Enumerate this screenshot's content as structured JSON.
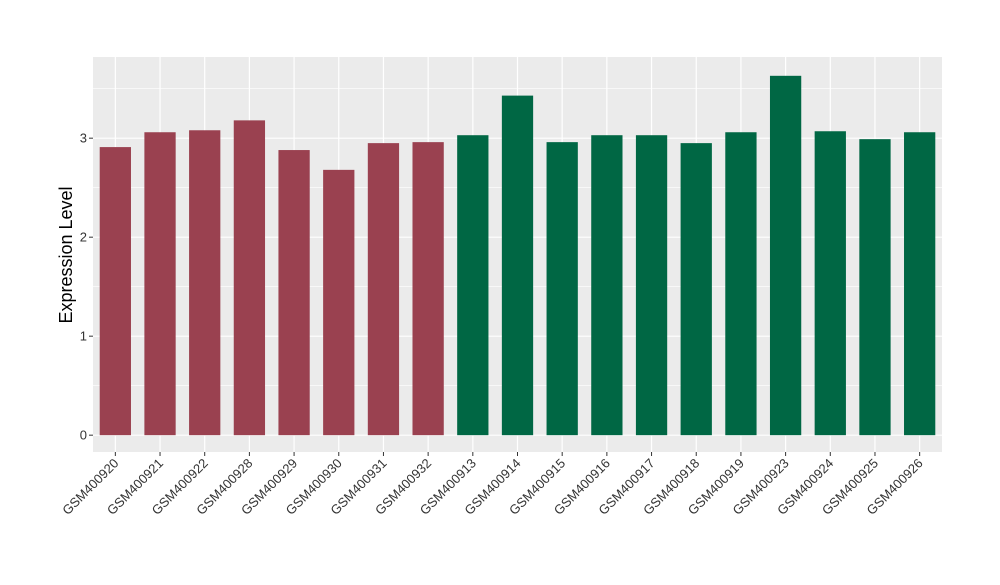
{
  "chart_data": {
    "type": "bar",
    "title": "",
    "xlabel": "",
    "ylabel": "Expression Level",
    "ylim": [
      -0.17,
      3.82
    ],
    "yticks": [
      0,
      1,
      2,
      3
    ],
    "grid": true,
    "legend": "none",
    "colors": {
      "group_a": "#9a4150",
      "group_b": "#006744",
      "panel": "#ebebeb",
      "gridline": "#ffffff"
    },
    "categories": [
      "GSM400920",
      "GSM400921",
      "GSM400922",
      "GSM400928",
      "GSM400929",
      "GSM400930",
      "GSM400931",
      "GSM400932",
      "GSM400913",
      "GSM400914",
      "GSM400915",
      "GSM400916",
      "GSM400917",
      "GSM400918",
      "GSM400919",
      "GSM400923",
      "GSM400924",
      "GSM400925",
      "GSM400926"
    ],
    "values": [
      2.91,
      3.06,
      3.08,
      3.18,
      2.88,
      2.68,
      2.95,
      2.96,
      3.03,
      3.43,
      2.96,
      3.03,
      3.03,
      2.95,
      3.06,
      3.63,
      3.07,
      2.99,
      3.06
    ],
    "groups": [
      "a",
      "a",
      "a",
      "a",
      "a",
      "a",
      "a",
      "a",
      "b",
      "b",
      "b",
      "b",
      "b",
      "b",
      "b",
      "b",
      "b",
      "b",
      "b"
    ]
  }
}
